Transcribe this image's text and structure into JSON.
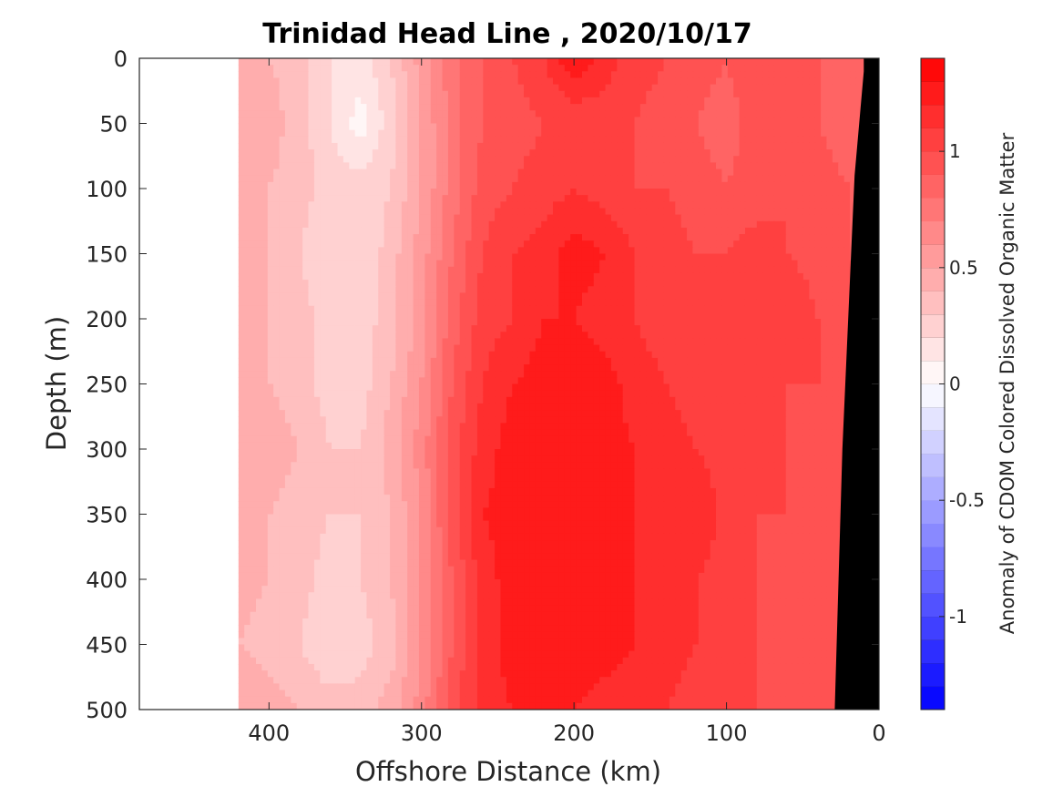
{
  "chart_data": {
    "type": "heatmap",
    "title": "Trinidad Head Line , 2020/10/17",
    "xlabel": "Offshore Distance (km)",
    "ylabel": "Depth (m)",
    "colorbar_label": "Anomaly of CDOM Colored Dissolved Organic Matter",
    "xlim": [
      485,
      0
    ],
    "x_reversed": true,
    "ylim": [
      0,
      500
    ],
    "y_reversed": true,
    "x_ticks": [
      400,
      300,
      200,
      100,
      0
    ],
    "x_tick_labels": [
      "400",
      "300",
      "200",
      "100",
      "0"
    ],
    "y_ticks": [
      0,
      50,
      100,
      150,
      200,
      250,
      300,
      350,
      400,
      450,
      500
    ],
    "y_tick_labels": [
      "0",
      "50",
      "100",
      "150",
      "200",
      "250",
      "300",
      "350",
      "400",
      "450",
      "500"
    ],
    "colorbar_range": [
      -1.4,
      1.4
    ],
    "colorbar_levels": 28,
    "colorbar_ticks": [
      1,
      0.5,
      0,
      -0.5,
      -1
    ],
    "colorbar_tick_labels": [
      "1",
      "0.5",
      "0",
      "-0.5",
      "-1"
    ],
    "colormap": {
      "low": "#0000ff",
      "mid": "#ffffff",
      "high": "#ff0000"
    },
    "data_x_extent": [
      420,
      0
    ],
    "x": [
      420,
      400,
      380,
      360,
      340,
      320,
      300,
      280,
      260,
      240,
      220,
      200,
      180,
      160,
      140,
      120,
      100,
      80,
      60,
      40,
      20,
      0
    ],
    "y": [
      0,
      50,
      100,
      150,
      200,
      250,
      300,
      350,
      400,
      450,
      500
    ],
    "z": [
      [
        0.45,
        0.4,
        0.35,
        0.2,
        0.15,
        0.3,
        0.55,
        0.75,
        0.9,
        1.0,
        1.1,
        1.3,
        1.15,
        1.05,
        1.0,
        0.95,
        0.9,
        1.0,
        0.95,
        0.9,
        0.85,
        0.8
      ],
      [
        0.4,
        0.45,
        0.35,
        0.2,
        0.05,
        0.25,
        0.5,
        0.75,
        0.9,
        0.95,
        1.0,
        1.0,
        1.05,
        1.0,
        0.95,
        0.9,
        0.85,
        0.95,
        0.95,
        0.9,
        0.85,
        0.8
      ],
      [
        0.45,
        0.4,
        0.35,
        0.25,
        0.25,
        0.3,
        0.5,
        0.75,
        0.95,
        1.0,
        1.05,
        1.1,
        1.05,
        1.0,
        1.0,
        0.95,
        0.9,
        0.95,
        1.0,
        0.95,
        0.9,
        0.85
      ],
      [
        0.45,
        0.4,
        0.3,
        0.2,
        0.2,
        0.35,
        0.55,
        0.8,
        1.0,
        1.1,
        1.15,
        1.25,
        1.2,
        1.1,
        1.05,
        1.0,
        1.0,
        1.05,
        1.0,
        0.95,
        0.9,
        0.85
      ],
      [
        0.4,
        0.4,
        0.35,
        0.25,
        0.25,
        0.35,
        0.55,
        0.85,
        1.05,
        1.1,
        1.2,
        1.2,
        1.15,
        1.1,
        1.05,
        1.05,
        1.0,
        1.05,
        1.1,
        1.0,
        0.95,
        0.9
      ],
      [
        0.45,
        0.4,
        0.35,
        0.25,
        0.25,
        0.4,
        0.6,
        0.9,
        1.1,
        1.2,
        1.25,
        1.3,
        1.25,
        1.15,
        1.1,
        1.05,
        1.05,
        1.0,
        1.0,
        1.0,
        0.95,
        0.9
      ],
      [
        0.5,
        0.45,
        0.4,
        0.3,
        0.3,
        0.45,
        0.65,
        0.95,
        1.15,
        1.25,
        1.3,
        1.3,
        1.25,
        1.2,
        1.15,
        1.1,
        1.05,
        1.0,
        1.0,
        0.95,
        0.95,
        0.9
      ],
      [
        0.45,
        0.4,
        0.35,
        0.3,
        0.3,
        0.4,
        0.6,
        0.95,
        1.2,
        1.25,
        1.25,
        1.25,
        1.2,
        1.2,
        1.15,
        1.2,
        1.05,
        1.0,
        1.0,
        0.95,
        0.9,
        0.85
      ],
      [
        0.45,
        0.4,
        0.35,
        0.25,
        0.3,
        0.4,
        0.6,
        0.9,
        1.15,
        1.25,
        1.25,
        1.3,
        1.25,
        1.2,
        1.15,
        1.1,
        1.05,
        1.0,
        0.95,
        0.95,
        0.9,
        0.85
      ],
      [
        0.4,
        0.35,
        0.3,
        0.2,
        0.25,
        0.35,
        0.6,
        0.9,
        1.15,
        1.25,
        1.3,
        1.3,
        1.25,
        1.2,
        1.15,
        1.1,
        1.05,
        1.0,
        0.95,
        0.95,
        0.9,
        0.85
      ],
      [
        0.5,
        0.45,
        0.4,
        0.35,
        0.35,
        0.45,
        0.65,
        0.95,
        1.15,
        1.2,
        1.2,
        1.2,
        1.15,
        1.15,
        1.1,
        1.05,
        1.05,
        1.0,
        0.95,
        0.95,
        0.9,
        0.85
      ]
    ],
    "topography_fill": "#000000",
    "topography": [
      [
        0,
        10
      ],
      [
        10,
        10
      ],
      [
        90,
        16
      ],
      [
        300,
        24
      ],
      [
        500,
        29
      ]
    ]
  }
}
